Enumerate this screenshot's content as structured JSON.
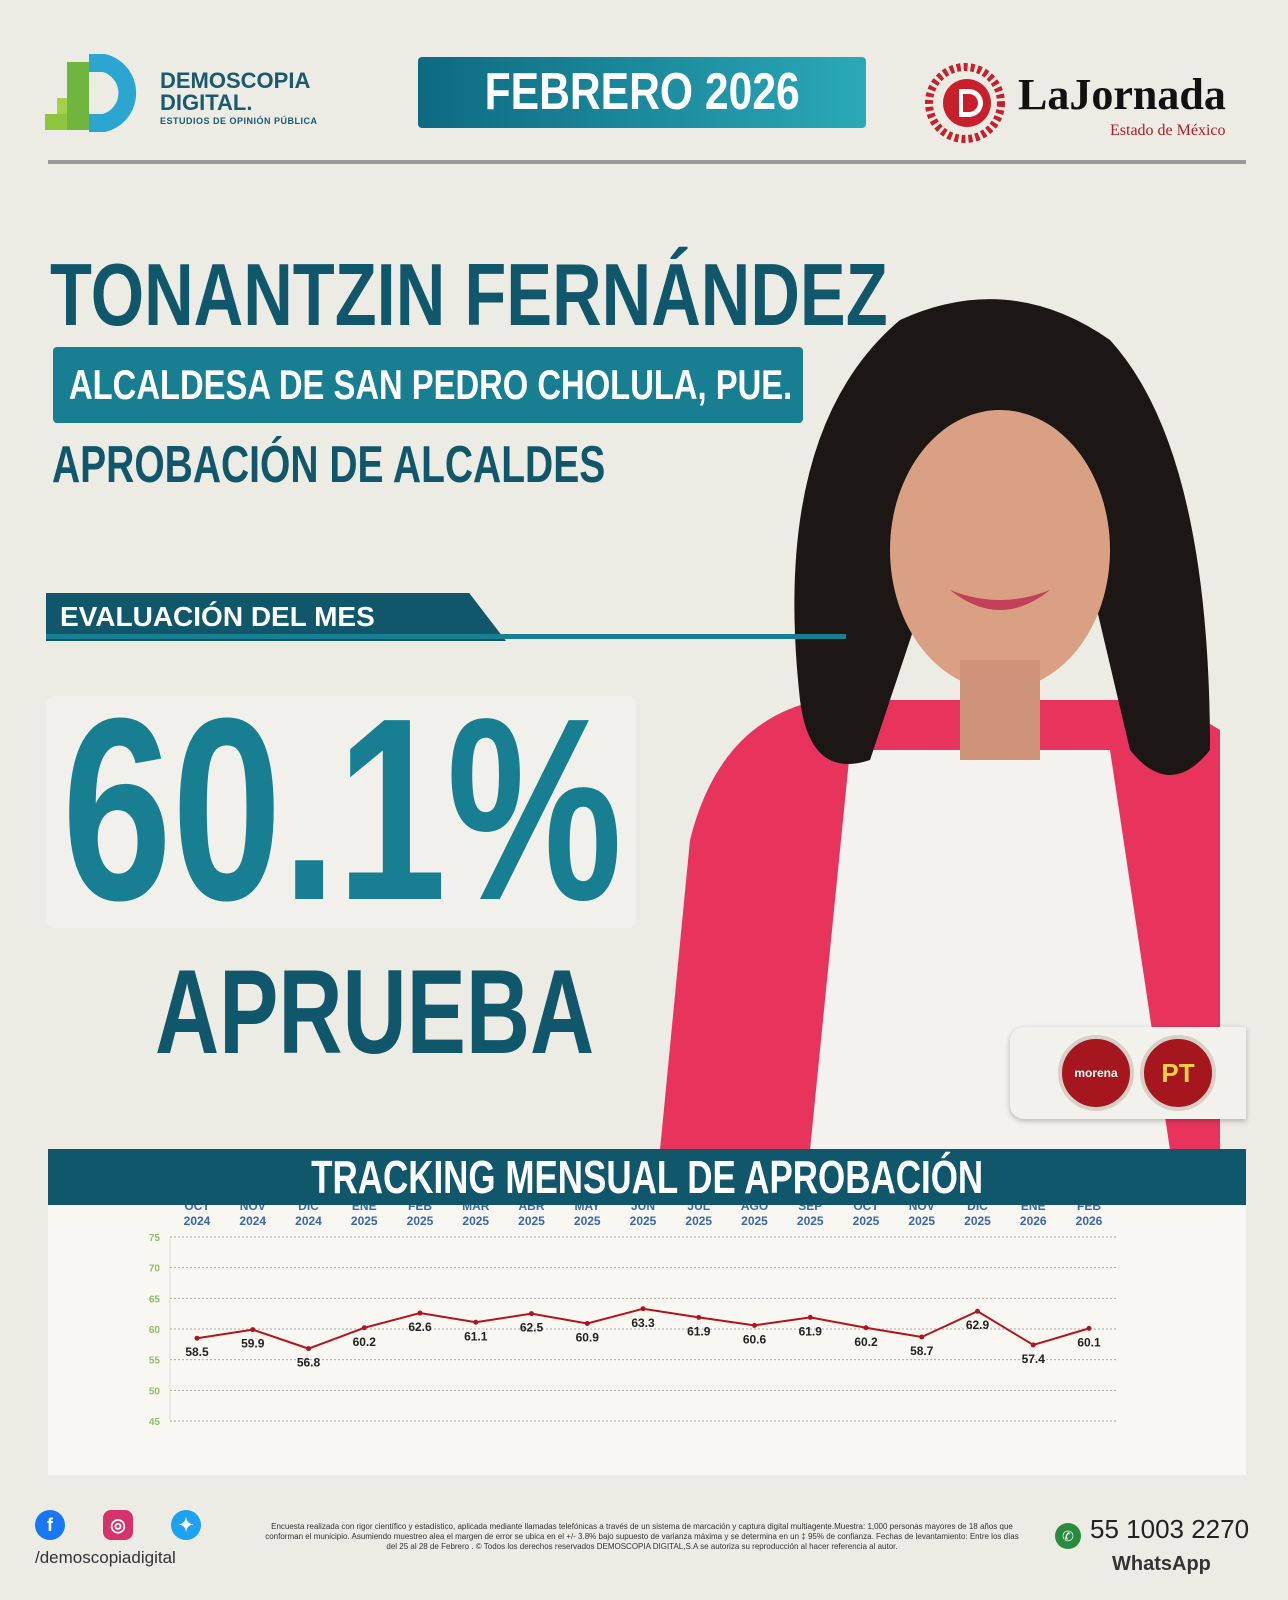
{
  "header": {
    "brand_name": "DEMOSCOPIA",
    "brand_name2": "DIGITAL.",
    "brand_tagline": "ESTUDIOS DE OPINIÓN PÚBLICA",
    "month": "FEBRERO 2026",
    "partner_name": "LaJornada",
    "partner_sub": "Estado de México"
  },
  "subject": {
    "name": "TONANTZIN FERNÁNDEZ",
    "role": "ALCALDESA DE SAN PEDRO CHOLULA, PUE.",
    "survey": "APROBACIÓN DE ALCALDES"
  },
  "evaluation": {
    "label": "EVALUACIÓN DEL MES",
    "value": "60.1%",
    "caption": "APRUEBA"
  },
  "parties": [
    "morena",
    "PT"
  ],
  "chart_data": {
    "type": "line",
    "title": "TRACKING MENSUAL DE APROBACIÓN",
    "categories": [
      [
        "OCT",
        "2024"
      ],
      [
        "NOV",
        "2024"
      ],
      [
        "DIC",
        "2024"
      ],
      [
        "ENE",
        "2025"
      ],
      [
        "FEB",
        "2025"
      ],
      [
        "MAR",
        "2025"
      ],
      [
        "ABR",
        "2025"
      ],
      [
        "MAY",
        "2025"
      ],
      [
        "JUN",
        "2025"
      ],
      [
        "JUL",
        "2025"
      ],
      [
        "AGO",
        "2025"
      ],
      [
        "SEP",
        "2025"
      ],
      [
        "OCT",
        "2025"
      ],
      [
        "NOV",
        "2025"
      ],
      [
        "DIC",
        "2025"
      ],
      [
        "ENE",
        "2026"
      ],
      [
        "FEB",
        "2026"
      ]
    ],
    "values": [
      58.5,
      59.9,
      56.8,
      60.2,
      62.6,
      61.1,
      62.5,
      60.9,
      63.3,
      61.9,
      60.6,
      61.9,
      60.2,
      58.7,
      62.9,
      57.4,
      60.1
    ],
    "ylim": [
      45,
      75
    ],
    "yticks": [
      75,
      70,
      65,
      60,
      55,
      50,
      45
    ],
    "grid": true,
    "colors": {
      "line": "#b3141c",
      "month": "#3a67a8",
      "ytick": "#8fc06a"
    }
  },
  "footer": {
    "handle": "/demoscopiadigital",
    "social_icons": [
      "facebook-icon",
      "instagram-icon",
      "twitter-icon"
    ],
    "disclaimer": "Encuesta realizada con rigor científico y estadístico, aplicada mediante llamadas telefónicas a través de un sistema de marcación y captura digital multiagente.Muestra: 1,000 personas mayores de 18 años que conforman el municipio. Asumiendo muestreo alea el margen de error se ubica en el +/- 3.8% bajo supuesto de varianza máxima y se determina en un ‡ 95% de confianza. Fechas de levantamiento: Entre los días del 25 al 28 de Febrero . © Todos los derechos reservados DEMOSCOPIA DIGITAL,S.A se autoriza su reproducción al hacer referencia al autor.",
    "phone": "55 1003 2270",
    "whatsapp": "WhatsApp"
  }
}
